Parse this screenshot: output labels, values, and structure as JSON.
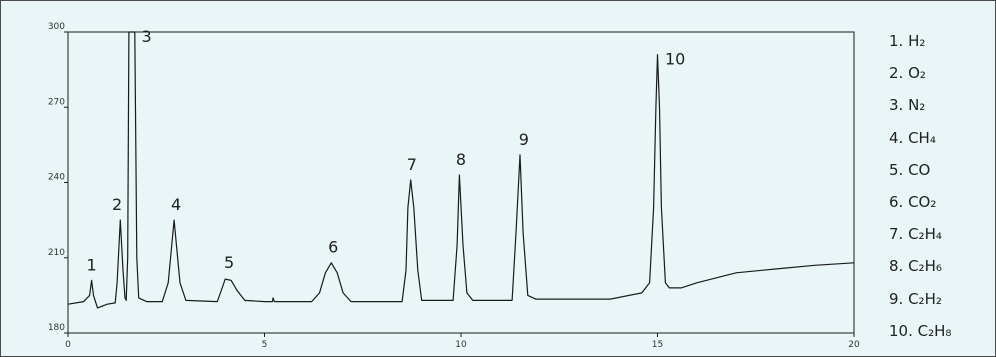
{
  "chart_data": {
    "type": "line",
    "title": "",
    "xlabel": "",
    "ylabel": "",
    "xlim": [
      0,
      20
    ],
    "ylim": [
      180,
      300
    ],
    "x_ticks": [
      "0",
      "5",
      "10",
      "15",
      "20"
    ],
    "y_ticks": [
      "180",
      "210",
      "240",
      "270",
      "300"
    ],
    "grid": false,
    "legend_position": "right",
    "series": [
      {
        "line_color": "#1a1a1a",
        "points": [
          [
            0.0,
            191.5
          ],
          [
            0.4,
            192.5
          ],
          [
            0.55,
            195
          ],
          [
            0.6,
            201
          ],
          [
            0.65,
            195
          ],
          [
            0.75,
            190
          ],
          [
            1.0,
            191.5
          ],
          [
            1.2,
            192
          ],
          [
            1.25,
            200
          ],
          [
            1.33,
            225
          ],
          [
            1.4,
            205
          ],
          [
            1.45,
            194
          ],
          [
            1.48,
            193
          ],
          [
            1.52,
            210
          ],
          [
            1.55,
            300
          ],
          [
            1.7,
            300
          ],
          [
            1.75,
            210
          ],
          [
            1.8,
            194
          ],
          [
            2.0,
            192.5
          ],
          [
            2.4,
            192.5
          ],
          [
            2.55,
            200
          ],
          [
            2.7,
            225
          ],
          [
            2.85,
            200
          ],
          [
            3.0,
            193
          ],
          [
            3.8,
            192.5
          ],
          [
            3.9,
            197
          ],
          [
            4.0,
            201.5
          ],
          [
            4.15,
            201
          ],
          [
            4.3,
            197
          ],
          [
            4.5,
            193
          ],
          [
            5.0,
            192.5
          ],
          [
            5.2,
            192.5
          ],
          [
            5.22,
            194
          ],
          [
            5.25,
            192.5
          ],
          [
            6.2,
            192.5
          ],
          [
            6.4,
            196
          ],
          [
            6.55,
            204
          ],
          [
            6.7,
            208
          ],
          [
            6.85,
            204
          ],
          [
            7.0,
            196
          ],
          [
            7.2,
            192.5
          ],
          [
            8.5,
            192.5
          ],
          [
            8.6,
            205
          ],
          [
            8.65,
            230
          ],
          [
            8.72,
            241
          ],
          [
            8.8,
            230
          ],
          [
            8.9,
            205
          ],
          [
            9.0,
            193
          ],
          [
            9.8,
            193
          ],
          [
            9.9,
            215
          ],
          [
            9.96,
            243
          ],
          [
            10.05,
            215
          ],
          [
            10.15,
            196
          ],
          [
            10.3,
            193
          ],
          [
            11.3,
            193
          ],
          [
            11.4,
            220
          ],
          [
            11.5,
            251
          ],
          [
            11.58,
            220
          ],
          [
            11.7,
            195
          ],
          [
            11.9,
            193.5
          ],
          [
            13.8,
            193.5
          ],
          [
            14.6,
            196
          ],
          [
            14.8,
            200
          ],
          [
            14.9,
            230
          ],
          [
            14.96,
            270
          ],
          [
            15.0,
            291
          ],
          [
            15.05,
            270
          ],
          [
            15.1,
            230
          ],
          [
            15.2,
            200
          ],
          [
            15.3,
            198
          ],
          [
            15.6,
            198
          ],
          [
            16.0,
            200
          ],
          [
            17.0,
            204
          ],
          [
            18.0,
            205.5
          ],
          [
            19.0,
            207
          ],
          [
            20.0,
            208
          ]
        ]
      }
    ],
    "peak_labels": [
      {
        "text": "1",
        "x": 0.6,
        "y": 205
      },
      {
        "text": "2",
        "x": 1.25,
        "y": 229
      },
      {
        "text": "3",
        "x": 2.0,
        "y": 296
      },
      {
        "text": "4",
        "x": 2.75,
        "y": 229
      },
      {
        "text": "5",
        "x": 4.1,
        "y": 206
      },
      {
        "text": "6",
        "x": 6.75,
        "y": 212
      },
      {
        "text": "7",
        "x": 8.75,
        "y": 245
      },
      {
        "text": "8",
        "x": 10.0,
        "y": 247
      },
      {
        "text": "9",
        "x": 11.6,
        "y": 255
      },
      {
        "text": "10",
        "x": 15.45,
        "y": 287
      }
    ]
  },
  "legend": {
    "items": [
      "1. H₂",
      "2. O₂",
      "3. N₂",
      "4. CH₄",
      "5. CO",
      "6. CO₂",
      "7. C₂H₄",
      "8. C₂H₆",
      "9. C₂H₂",
      "10. C₂H₈"
    ]
  }
}
